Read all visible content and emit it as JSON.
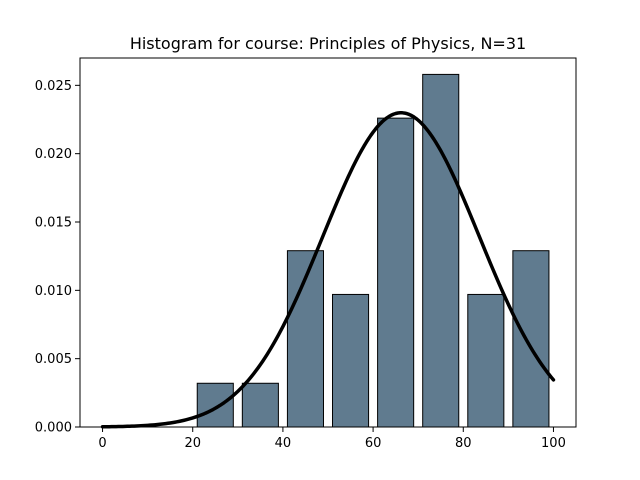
{
  "chart_data": {
    "type": "bar",
    "title": "Histogram for course: Principles of Physics,  N=31",
    "xlabel": "",
    "ylabel": "",
    "xlim": [
      -5,
      105
    ],
    "ylim": [
      0,
      0.027
    ],
    "x_ticks": [
      0,
      20,
      40,
      60,
      80,
      100
    ],
    "x_tick_labels": [
      "0",
      "20",
      "40",
      "60",
      "80",
      "100"
    ],
    "y_ticks": [
      0.0,
      0.005,
      0.01,
      0.015,
      0.02,
      0.025
    ],
    "y_tick_labels": [
      "0.000",
      "0.005",
      "0.010",
      "0.015",
      "0.020",
      "0.025"
    ],
    "grid": false,
    "bar_color": "#607b8f",
    "bar_edge_color": "#000000",
    "bins": [
      {
        "left": 20,
        "right": 30,
        "density": 0.0032
      },
      {
        "left": 30,
        "right": 40,
        "density": 0.0032
      },
      {
        "left": 40,
        "right": 50,
        "density": 0.0129
      },
      {
        "left": 50,
        "right": 60,
        "density": 0.0097
      },
      {
        "left": 60,
        "right": 70,
        "density": 0.0226
      },
      {
        "left": 70,
        "right": 80,
        "density": 0.0258
      },
      {
        "left": 80,
        "right": 90,
        "density": 0.0097
      },
      {
        "left": 90,
        "right": 100,
        "density": 0.0129
      }
    ],
    "bar_width_fraction": 0.8,
    "curve": {
      "type": "normal-pdf",
      "mean": 66.2,
      "std": 17.35,
      "x_range": [
        0,
        100
      ],
      "color": "#000000"
    }
  }
}
